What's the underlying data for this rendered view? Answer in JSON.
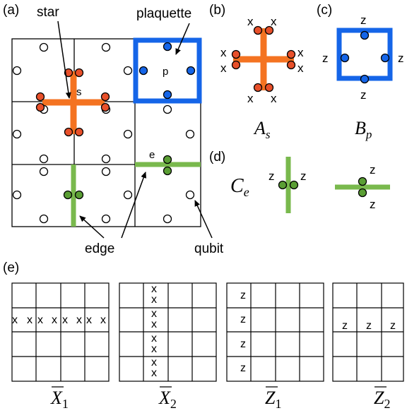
{
  "panel_labels": {
    "a": "(a)",
    "b": "(b)",
    "c": "(c)",
    "d": "(d)",
    "e": "(e)"
  },
  "callouts": {
    "star": "star",
    "plaquette": "plaquette",
    "edge": "edge",
    "qubit": "qubit",
    "s": "s",
    "p": "p",
    "e": "e"
  },
  "operators": {
    "x": "x",
    "z": "z",
    "As": {
      "main": "A",
      "sub": "s"
    },
    "Bp": {
      "main": "B",
      "sub": "p"
    },
    "Ce": {
      "main": "C",
      "sub": "e"
    }
  },
  "logical": [
    {
      "main": "X",
      "sub": "1"
    },
    {
      "main": "X",
      "sub": "2"
    },
    {
      "main": "Z",
      "sub": "1"
    },
    {
      "main": "Z",
      "sub": "2"
    }
  ],
  "colors": {
    "star": "#f47321",
    "star_qubit": "#e8502a",
    "plaquette": "#1565e8",
    "edge": "#79b94d",
    "edge_qubit": "#5a9e34",
    "grid": "#000000"
  }
}
